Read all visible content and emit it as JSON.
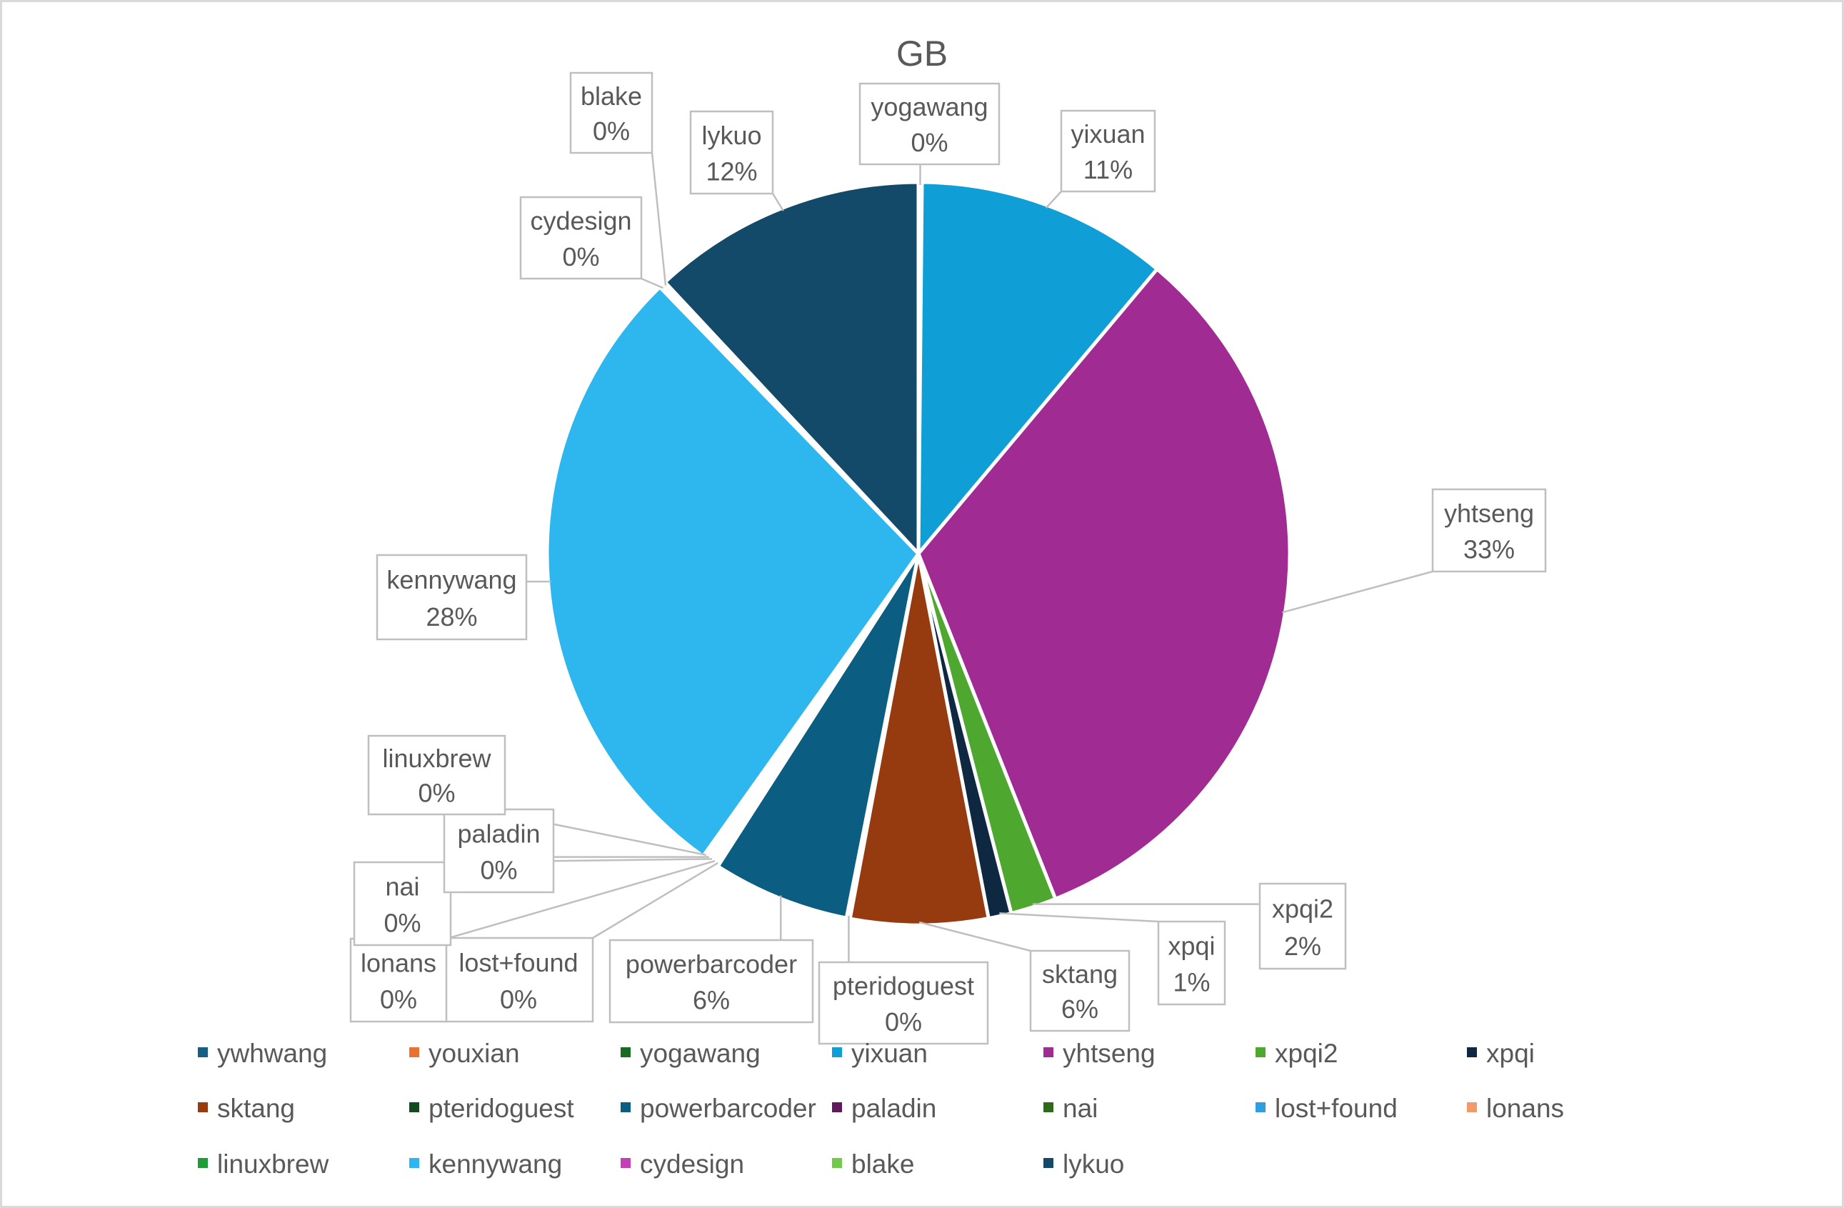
{
  "chart_data": {
    "type": "pie",
    "title": "GB",
    "legend_position": "bottom",
    "slices": [
      {
        "name": "yogawang",
        "value": 0,
        "label": "0%",
        "color": "#1b6a2f"
      },
      {
        "name": "yixuan",
        "value": 11,
        "label": "11%",
        "color": "#0f9ed5"
      },
      {
        "name": "yhtseng",
        "value": 33,
        "label": "33%",
        "color": "#a02b93"
      },
      {
        "name": "xpqi2",
        "value": 2,
        "label": "2%",
        "color": "#4ea72e"
      },
      {
        "name": "xpqi",
        "value": 1,
        "label": "1%",
        "color": "#0e2841"
      },
      {
        "name": "sktang",
        "value": 6,
        "label": "6%",
        "color": "#953b0f"
      },
      {
        "name": "pteridoguest",
        "value": 0,
        "label": "0%",
        "color": "#134b21"
      },
      {
        "name": "powerbarcoder",
        "value": 6,
        "label": "6%",
        "color": "#0b5e81"
      },
      {
        "name": "lost+found",
        "value": 0,
        "label": "0%",
        "color": "#2e9fdc"
      },
      {
        "name": "lonans",
        "value": 0,
        "label": "0%",
        "color": "#f19a6b"
      },
      {
        "name": "nai",
        "value": 0,
        "label": "0%",
        "color": "#2d6b1a"
      },
      {
        "name": "paladin",
        "value": 0,
        "label": "0%",
        "color": "#60195a"
      },
      {
        "name": "linuxbrew",
        "value": 0,
        "label": "0%",
        "color": "#1f9b38"
      },
      {
        "name": "kennywang",
        "value": 28,
        "label": "28%",
        "color": "#2eb7ee"
      },
      {
        "name": "cydesign",
        "value": 0,
        "label": "0%",
        "color": "#c43fb6"
      },
      {
        "name": "blake",
        "value": 0,
        "label": "0%",
        "color": "#72c94b"
      },
      {
        "name": "lykuo",
        "value": 12,
        "label": "12%",
        "color": "#144a69"
      }
    ],
    "legend": [
      {
        "name": "ywhwang",
        "color": "#156082"
      },
      {
        "name": "youxian",
        "color": "#e97132"
      },
      {
        "name": "yogawang",
        "color": "#196b24"
      },
      {
        "name": "yixuan",
        "color": "#0f9ed5"
      },
      {
        "name": "yhtseng",
        "color": "#a02b93"
      },
      {
        "name": "xpqi2",
        "color": "#4ea72e"
      },
      {
        "name": "xpqi",
        "color": "#0e2841"
      },
      {
        "name": "sktang",
        "color": "#953b0f"
      },
      {
        "name": "pteridoguest",
        "color": "#134b21"
      },
      {
        "name": "powerbarcoder",
        "color": "#0b5e81"
      },
      {
        "name": "paladin",
        "color": "#60195a"
      },
      {
        "name": "nai",
        "color": "#2d6b1a"
      },
      {
        "name": "lost+found",
        "color": "#2e9fdc"
      },
      {
        "name": "lonans",
        "color": "#f19a6b"
      },
      {
        "name": "linuxbrew",
        "color": "#1f9b38"
      },
      {
        "name": "kennywang",
        "color": "#2eb7ee"
      },
      {
        "name": "cydesign",
        "color": "#c43fb6"
      },
      {
        "name": "blake",
        "color": "#72c94b"
      },
      {
        "name": "lykuo",
        "color": "#144a69"
      }
    ]
  }
}
